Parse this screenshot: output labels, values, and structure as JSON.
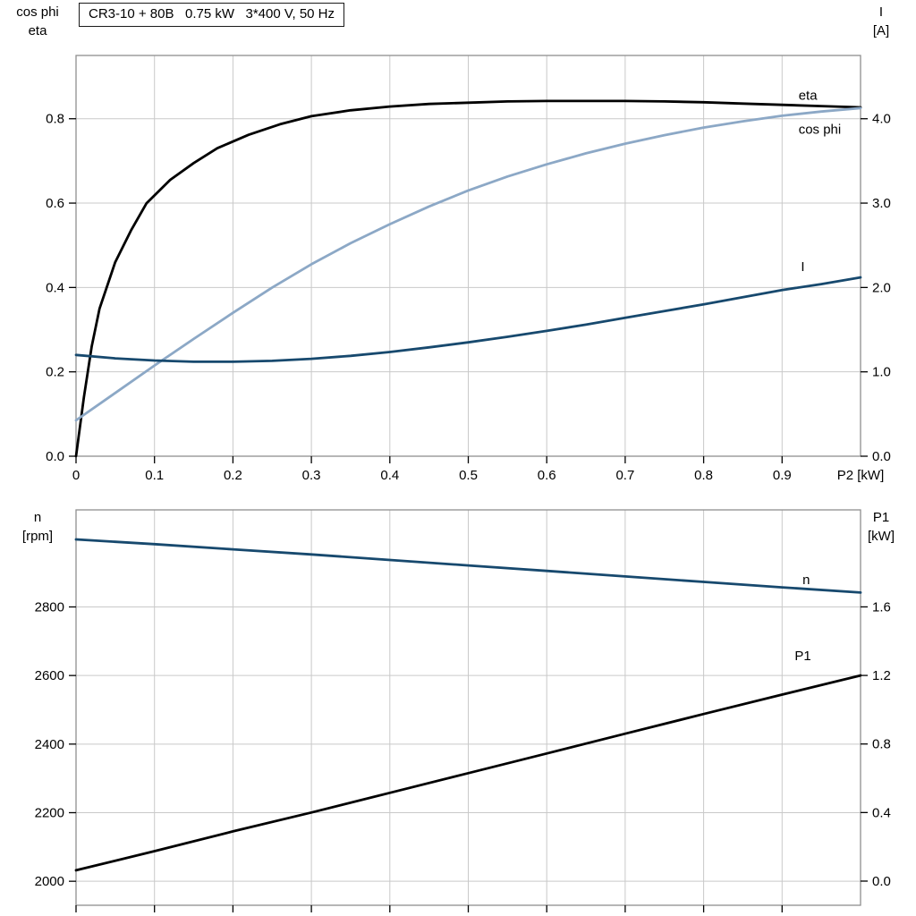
{
  "colors": {
    "black": "#000000",
    "dark_blue": "#17496e",
    "light_blue": "#8ca8c6",
    "grid": "#c9c9c9",
    "border": "#8f8f8f",
    "plot_bg": "#ffffff"
  },
  "chart_data": [
    {
      "type": "line",
      "title": "CR3-10 + 80B   0.75 kW   3*400 V, 50 Hz",
      "xlabel": "P2 [kW]",
      "xlim": [
        0,
        1.0
      ],
      "x_ticks": [
        0,
        0.1,
        0.2,
        0.3,
        0.4,
        0.5,
        0.6,
        0.7,
        0.8,
        0.9
      ],
      "x_tick_labels": [
        "0",
        "0.1",
        "0.2",
        "0.3",
        "0.4",
        "0.5",
        "0.6",
        "0.7",
        "0.8",
        "0.9"
      ],
      "grid": true,
      "legend_position": "labels-at-curve-ends",
      "left_axis": {
        "label_lines": [
          "cos phi",
          "eta"
        ],
        "lim": [
          0,
          0.95
        ],
        "ticks": [
          0.0,
          0.2,
          0.4,
          0.6,
          0.8
        ],
        "tick_labels": [
          "0.0",
          "0.2",
          "0.4",
          "0.6",
          "0.8"
        ]
      },
      "right_axis": {
        "label_lines": [
          "I",
          "[A]"
        ],
        "lim": [
          0,
          4.75
        ],
        "ticks": [
          0.0,
          1.0,
          2.0,
          3.0,
          4.0
        ],
        "tick_labels": [
          "0.0",
          "1.0",
          "2.0",
          "3.0",
          "4.0"
        ]
      },
      "series": [
        {
          "name": "eta",
          "axis": "left",
          "color": "black",
          "label": {
            "text": "eta",
            "x": 0.921,
            "y": 0.845
          },
          "x": [
            0,
            0.01,
            0.02,
            0.03,
            0.05,
            0.07,
            0.09,
            0.12,
            0.15,
            0.18,
            0.22,
            0.26,
            0.3,
            0.35,
            0.4,
            0.45,
            0.5,
            0.55,
            0.6,
            0.65,
            0.7,
            0.75,
            0.8,
            0.85,
            0.9,
            0.95,
            1.0
          ],
          "y": [
            0,
            0.14,
            0.26,
            0.35,
            0.46,
            0.535,
            0.6,
            0.655,
            0.695,
            0.73,
            0.762,
            0.787,
            0.806,
            0.82,
            0.829,
            0.835,
            0.838,
            0.841,
            0.842,
            0.842,
            0.842,
            0.841,
            0.839,
            0.836,
            0.833,
            0.83,
            0.827
          ]
        },
        {
          "name": "cos phi",
          "axis": "left",
          "color": "light_blue",
          "label": {
            "text": "cos phi",
            "x": 0.921,
            "y": 0.764
          },
          "x": [
            0,
            0.05,
            0.1,
            0.15,
            0.2,
            0.25,
            0.3,
            0.35,
            0.4,
            0.45,
            0.5,
            0.55,
            0.6,
            0.65,
            0.7,
            0.75,
            0.8,
            0.85,
            0.9,
            0.95,
            1.0
          ],
          "y": [
            0.085,
            0.15,
            0.215,
            0.278,
            0.34,
            0.4,
            0.455,
            0.505,
            0.55,
            0.592,
            0.63,
            0.663,
            0.692,
            0.718,
            0.741,
            0.761,
            0.779,
            0.794,
            0.807,
            0.817,
            0.825
          ]
        },
        {
          "name": "I",
          "axis": "right",
          "color": "dark_blue",
          "label": {
            "text": "I",
            "x": 0.924,
            "y": 2.196
          },
          "x": [
            0,
            0.05,
            0.1,
            0.15,
            0.2,
            0.25,
            0.3,
            0.35,
            0.4,
            0.45,
            0.5,
            0.55,
            0.6,
            0.65,
            0.7,
            0.75,
            0.8,
            0.85,
            0.9,
            0.95,
            1.0
          ],
          "y": [
            1.2,
            1.16,
            1.135,
            1.12,
            1.12,
            1.13,
            1.155,
            1.19,
            1.235,
            1.29,
            1.35,
            1.415,
            1.485,
            1.56,
            1.64,
            1.72,
            1.8,
            1.885,
            1.97,
            2.04,
            2.12
          ]
        }
      ]
    },
    {
      "type": "line",
      "title": "",
      "xlabel": "",
      "xlim": [
        0,
        1.0
      ],
      "x_ticks": [
        0,
        0.1,
        0.2,
        0.3,
        0.4,
        0.5,
        0.6,
        0.7,
        0.8,
        0.9
      ],
      "x_tick_labels": [],
      "grid": true,
      "legend_position": "labels-at-curve-ends",
      "left_axis": {
        "label_lines": [
          "n",
          "[rpm]"
        ],
        "lim": [
          1930,
          3083
        ],
        "ticks": [
          2000,
          2200,
          2400,
          2600,
          2800
        ],
        "tick_labels": [
          "2000",
          "2200",
          "2400",
          "2600",
          "2800"
        ]
      },
      "right_axis": {
        "label_lines": [
          "P1",
          "[kW]"
        ],
        "lim": [
          -0.141,
          2.166
        ],
        "ticks": [
          0.0,
          0.4,
          0.8,
          1.2,
          1.6
        ],
        "tick_labels": [
          "0.0",
          "0.4",
          "0.8",
          "1.2",
          "1.6"
        ]
      },
      "series": [
        {
          "name": "n",
          "axis": "left",
          "color": "dark_blue",
          "label": {
            "text": "n",
            "x": 0.926,
            "y": 2867
          },
          "x": [
            0,
            0.1,
            0.2,
            0.3,
            0.4,
            0.5,
            0.6,
            0.7,
            0.8,
            0.9,
            1.0
          ],
          "y": [
            2997,
            2983,
            2968,
            2953,
            2937,
            2921,
            2905,
            2889,
            2873,
            2857,
            2842
          ]
        },
        {
          "name": "P1",
          "axis": "right",
          "color": "black",
          "label": {
            "text": "P1",
            "x": 0.916,
            "y": 1.289
          },
          "x": [
            0,
            0.1,
            0.2,
            0.3,
            0.4,
            0.5,
            0.6,
            0.7,
            0.8,
            0.9,
            1.0
          ],
          "y": [
            0.063,
            0.175,
            0.29,
            0.4,
            0.515,
            0.63,
            0.745,
            0.86,
            0.975,
            1.088,
            1.2
          ]
        }
      ]
    }
  ]
}
